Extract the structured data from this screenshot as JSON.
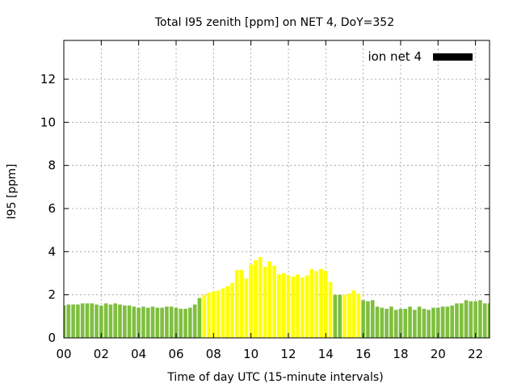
{
  "chart_data": {
    "type": "bar",
    "title": "Total I95 zenith [ppm] on NET 4, DoY=352",
    "xlabel": "Time of day UTC (15-minute intervals)",
    "ylabel": "I95 [ppm]",
    "xlim": [
      0,
      22.75
    ],
    "ylim": [
      0,
      13.8
    ],
    "x_step_hours": 0.25,
    "xticks": [
      0,
      2,
      4,
      6,
      8,
      10,
      12,
      14,
      16,
      18,
      20,
      22
    ],
    "xtick_labels": [
      "00",
      "02",
      "04",
      "06",
      "08",
      "10",
      "12",
      "14",
      "16",
      "18",
      "20",
      "22"
    ],
    "yticks": [
      0,
      2,
      4,
      6,
      8,
      10,
      12
    ],
    "ytick_labels": [
      "0",
      "2",
      "4",
      "6",
      "8",
      "10",
      "12"
    ],
    "grid": true,
    "legend": {
      "position": "top-right",
      "label": "ion net 4",
      "color": "#000000"
    },
    "colors": {
      "low": "#7fbf3f",
      "elevated": "#ffff00",
      "legend": "#000000"
    },
    "values": [
      1.5,
      1.55,
      1.55,
      1.55,
      1.6,
      1.6,
      1.6,
      1.55,
      1.5,
      1.6,
      1.55,
      1.6,
      1.55,
      1.5,
      1.5,
      1.45,
      1.4,
      1.45,
      1.4,
      1.45,
      1.4,
      1.4,
      1.45,
      1.45,
      1.4,
      1.35,
      1.35,
      1.4,
      1.55,
      1.85,
      2.0,
      2.1,
      2.15,
      2.2,
      2.3,
      2.4,
      2.55,
      3.15,
      3.15,
      2.75,
      3.4,
      3.6,
      3.75,
      3.3,
      3.55,
      3.35,
      2.95,
      3.0,
      2.9,
      2.85,
      2.95,
      2.8,
      2.9,
      3.2,
      3.1,
      3.2,
      3.1,
      2.6,
      2.0,
      2.0,
      2.0,
      2.05,
      2.2,
      2.05,
      1.75,
      1.7,
      1.75,
      1.45,
      1.4,
      1.35,
      1.45,
      1.3,
      1.35,
      1.35,
      1.45,
      1.3,
      1.45,
      1.35,
      1.3,
      1.4,
      1.4,
      1.45,
      1.45,
      1.5,
      1.6,
      1.6,
      1.75,
      1.7,
      1.7,
      1.75,
      1.6,
      1.6
    ],
    "category": [
      "low",
      "low",
      "low",
      "low",
      "low",
      "low",
      "low",
      "low",
      "low",
      "low",
      "low",
      "low",
      "low",
      "low",
      "low",
      "low",
      "low",
      "low",
      "low",
      "low",
      "low",
      "low",
      "low",
      "low",
      "low",
      "low",
      "low",
      "low",
      "low",
      "low",
      "elevated",
      "elevated",
      "elevated",
      "elevated",
      "elevated",
      "elevated",
      "elevated",
      "elevated",
      "elevated",
      "elevated",
      "elevated",
      "elevated",
      "elevated",
      "elevated",
      "elevated",
      "elevated",
      "elevated",
      "elevated",
      "elevated",
      "elevated",
      "elevated",
      "elevated",
      "elevated",
      "elevated",
      "elevated",
      "elevated",
      "elevated",
      "elevated",
      "low",
      "low",
      "elevated",
      "elevated",
      "elevated",
      "elevated",
      "low",
      "low",
      "low",
      "low",
      "low",
      "low",
      "low",
      "low",
      "low",
      "low",
      "low",
      "low",
      "low",
      "low",
      "low",
      "low",
      "low",
      "low",
      "low",
      "low",
      "low",
      "low",
      "low",
      "low",
      "low",
      "low",
      "low",
      "low"
    ]
  }
}
